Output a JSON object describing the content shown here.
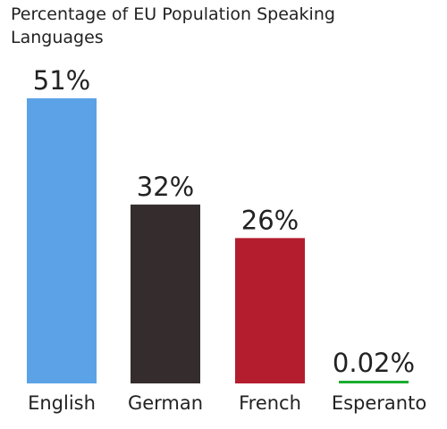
{
  "chart_data": {
    "type": "bar",
    "title_lines": [
      "Percentage of EU Population Speaking",
      "Languages"
    ],
    "categories": [
      "English",
      "German",
      "French",
      "Esperanto"
    ],
    "values": [
      51,
      32,
      26,
      0.02
    ],
    "value_labels": [
      "51%",
      "32%",
      "26%",
      "0.02%"
    ],
    "colors": [
      "#5ba3e6",
      "#352d2d",
      "#b41d2e",
      "#1aac2e"
    ],
    "unit": "%",
    "ylim": [
      0,
      51
    ],
    "grid": false,
    "legend": "none"
  }
}
